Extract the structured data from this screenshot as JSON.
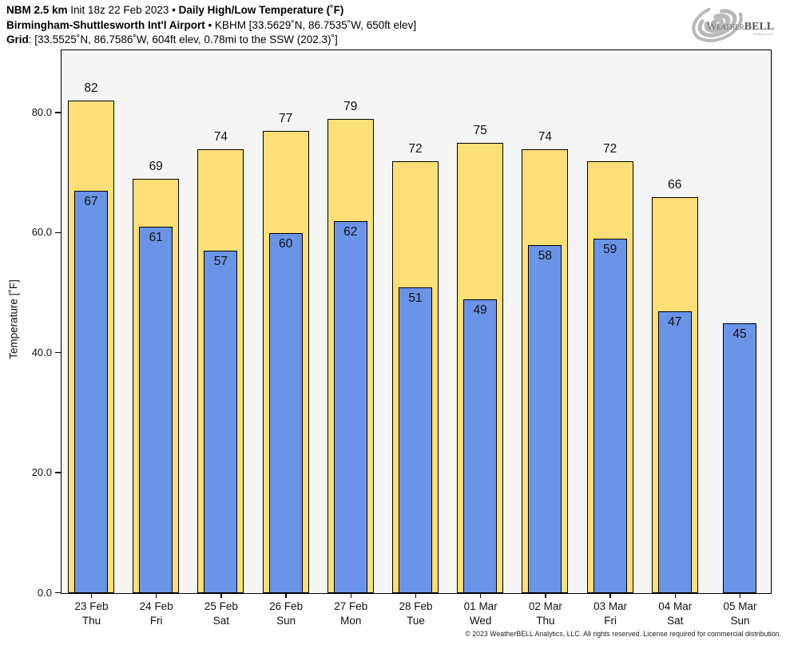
{
  "header": {
    "line1": [
      {
        "text": "NBM 2.5 km",
        "bold": true
      },
      {
        "text": " Init 18z 22 Feb 2023 ",
        "bold": false
      },
      {
        "text": "• Daily High/Low Temperature (˚F)",
        "bold": true
      }
    ],
    "line2": [
      {
        "text": "Birmingham-Shuttlesworth Int'l Airport",
        "bold": true
      },
      {
        "text": " • KBHM [33.5629˚N, 86.7535˚W, 650ft elev]",
        "bold": false
      }
    ],
    "line3": [
      {
        "text": "Grid",
        "bold": true
      },
      {
        "text": ": [33.5525˚N, 86.7586˚W, 604ft elev, 0.78mi to the SSW (202.3)˚]",
        "bold": false
      }
    ]
  },
  "logo": {
    "w": "W",
    "eather": "EATHER",
    "bell": "BELL",
    "sub": "Analytics LLC"
  },
  "chart_data": {
    "type": "bar",
    "title": "NBM 2.5 km Init 18z 22 Feb 2023 • Daily High/Low Temperature (˚F)",
    "subtitle": "Birmingham-Shuttlesworth Int'l Airport • KBHM [33.5629˚N, 86.7535˚W, 650ft elev]",
    "grid_info": "Grid: [33.5525˚N, 86.7586˚W, 604ft elev, 0.78mi to the SSW (202.3)˚]",
    "xlabel": "",
    "ylabel": "Temperature [˚F]",
    "ylim": [
      0,
      90.3
    ],
    "yticks": [
      0,
      20,
      40,
      60,
      80
    ],
    "ytick_labels": [
      "0.0",
      "20.0",
      "40.0",
      "60.0",
      "80.0"
    ],
    "grid": false,
    "legend": "none",
    "plot_bg": "#f5f5f5",
    "bar_outline": "#000000",
    "categories": [
      {
        "date": "23 Feb",
        "day": "Thu"
      },
      {
        "date": "24 Feb",
        "day": "Fri"
      },
      {
        "date": "25 Feb",
        "day": "Sat"
      },
      {
        "date": "26 Feb",
        "day": "Sun"
      },
      {
        "date": "27 Feb",
        "day": "Mon"
      },
      {
        "date": "28 Feb",
        "day": "Tue"
      },
      {
        "date": "01 Mar",
        "day": "Wed"
      },
      {
        "date": "02 Mar",
        "day": "Thu"
      },
      {
        "date": "03 Mar",
        "day": "Fri"
      },
      {
        "date": "04 Mar",
        "day": "Sat"
      },
      {
        "date": "05 Mar",
        "day": "Sun"
      }
    ],
    "series": [
      {
        "name": "Daily High",
        "color": "#FCDF76",
        "values": [
          82,
          69,
          74,
          77,
          79,
          72,
          75,
          74,
          72,
          66,
          null
        ]
      },
      {
        "name": "Daily Low",
        "color": "#6A94E8",
        "values": [
          67,
          61,
          57,
          60,
          62,
          51,
          49,
          58,
          59,
          47,
          45
        ]
      }
    ]
  },
  "footer": {
    "copyright": "© 2023 WeatherBELL Analytics, LLC. All rights reserved. License required for commercial distribution."
  }
}
